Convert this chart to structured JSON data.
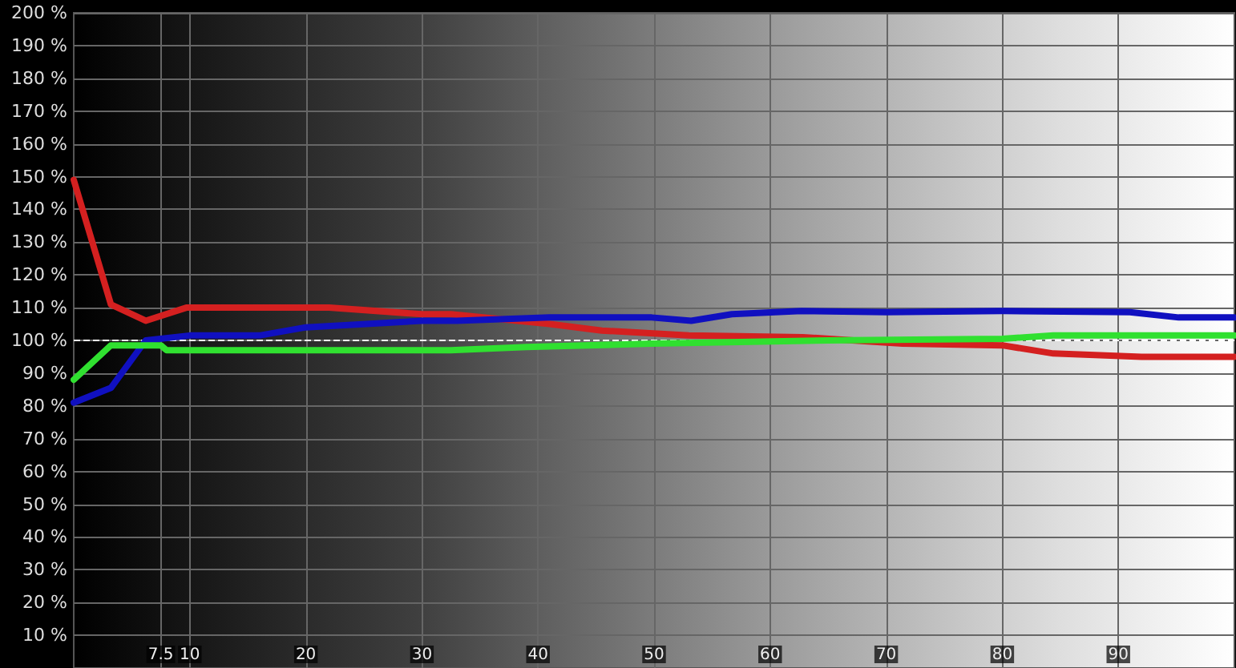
{
  "chart_data": {
    "type": "line",
    "xlim": [
      0,
      100
    ],
    "xticks": [
      7.5,
      10,
      20,
      30,
      40,
      50,
      60,
      70,
      80,
      90
    ],
    "ylim": [
      0,
      200
    ],
    "yticks": [
      {
        "value": 10,
        "label": "10 %"
      },
      {
        "value": 20,
        "label": "20 %"
      },
      {
        "value": 30,
        "label": "30 %"
      },
      {
        "value": 40,
        "label": "40 %"
      },
      {
        "value": 50,
        "label": "50 %"
      },
      {
        "value": 60,
        "label": "60 %"
      },
      {
        "value": 70,
        "label": "70 %"
      },
      {
        "value": 80,
        "label": "80 %"
      },
      {
        "value": 90,
        "label": "90 %"
      },
      {
        "value": 100,
        "label": "100 %"
      },
      {
        "value": 110,
        "label": "110 %"
      },
      {
        "value": 120,
        "label": "120 %"
      },
      {
        "value": 130,
        "label": "130 %"
      },
      {
        "value": 140,
        "label": "140 %"
      },
      {
        "value": 150,
        "label": "150 %"
      },
      {
        "value": 160,
        "label": "160 %"
      },
      {
        "value": 170,
        "label": "170 %"
      },
      {
        "value": 180,
        "label": "180 %"
      },
      {
        "value": 190,
        "label": "190 %"
      },
      {
        "value": 200,
        "label": "200 %"
      }
    ],
    "grid": true,
    "marker": "none",
    "line_style": "solid",
    "ref_lines": [
      {
        "axis": "y",
        "value": 100,
        "color": "#ffffff",
        "line_style": "dashed"
      }
    ],
    "series": [
      {
        "color": "#d42020",
        "x": [
          0,
          3.2,
          6.2,
          9.7,
          22,
          30,
          32.5,
          41,
          45.5,
          53,
          62.8,
          71.4,
          80,
          84.4,
          92,
          100
        ],
        "values": [
          149,
          111,
          106,
          110,
          110,
          108,
          108,
          105,
          103,
          101.5,
          101,
          99,
          98.5,
          96,
          95,
          95
        ]
      },
      {
        "color": "#1010c0",
        "x": [
          0,
          3.2,
          6.2,
          10,
          16,
          20,
          30,
          33,
          41,
          49.8,
          53.2,
          56.7,
          62.7,
          70,
          80,
          91,
          95.2,
          100
        ],
        "values": [
          81,
          85.5,
          100,
          101.5,
          101.5,
          104,
          106,
          106,
          107,
          107,
          106,
          108,
          109,
          108.6,
          109,
          108.6,
          107,
          107
        ]
      },
      {
        "color": "#30e030",
        "x": [
          0,
          3.2,
          6.2,
          7.5,
          8,
          30,
          32.5,
          39,
          49.8,
          65,
          80,
          84.4,
          100
        ],
        "values": [
          88,
          98.5,
          98.5,
          98.5,
          97,
          97,
          97,
          98,
          99,
          100,
          100.5,
          101.5,
          101.5
        ]
      }
    ]
  }
}
